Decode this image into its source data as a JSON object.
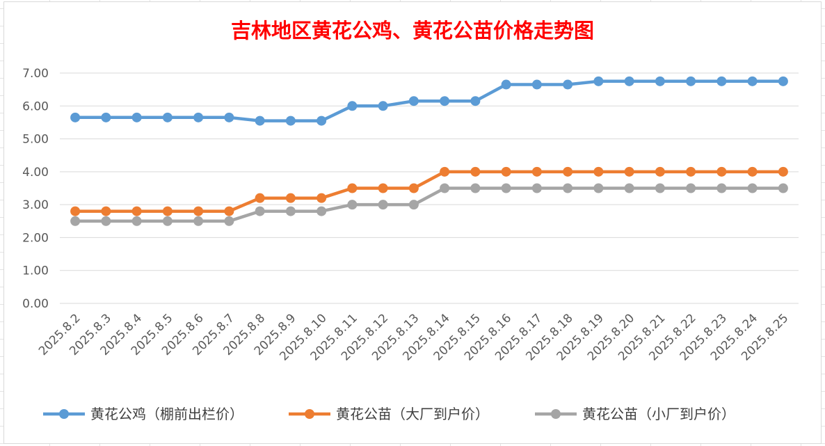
{
  "chart_data": {
    "type": "line",
    "title": "吉林地区黄花公鸡、黄花公苗价格走势图",
    "xlabel": "",
    "ylabel": "",
    "ylim": [
      0,
      7
    ],
    "y_ticks": [
      "0.00",
      "1.00",
      "2.00",
      "3.00",
      "4.00",
      "5.00",
      "6.00",
      "7.00"
    ],
    "grid": "horizontal",
    "legend_position": "bottom",
    "categories": [
      "2025.8.2",
      "2025.8.3",
      "2025.8.4",
      "2025.8.5",
      "2025.8.6",
      "2025.8.7",
      "2025.8.8",
      "2025.8.9",
      "2025.8.10",
      "2025.8.11",
      "2025.8.12",
      "2025.8.13",
      "2025.8.14",
      "2025.8.15",
      "2025.8.16",
      "2025.8.17",
      "2025.8.18",
      "2025.8.19",
      "2025.8.20",
      "2025.8.21",
      "2025.8.22",
      "2025.8.23",
      "2025.8.24",
      "2025.8.25"
    ],
    "series": [
      {
        "name": "黄花公鸡（棚前出栏价）",
        "color": "#5b9bd5",
        "values": [
          5.65,
          5.65,
          5.65,
          5.65,
          5.65,
          5.65,
          5.55,
          5.55,
          5.55,
          6.0,
          6.0,
          6.15,
          6.15,
          6.15,
          6.65,
          6.65,
          6.65,
          6.75,
          6.75,
          6.75,
          6.75,
          6.75,
          6.75,
          6.75
        ]
      },
      {
        "name": "黄花公苗（大厂到户价）",
        "color": "#ed7d31",
        "values": [
          2.8,
          2.8,
          2.8,
          2.8,
          2.8,
          2.8,
          3.2,
          3.2,
          3.2,
          3.5,
          3.5,
          3.5,
          4.0,
          4.0,
          4.0,
          4.0,
          4.0,
          4.0,
          4.0,
          4.0,
          4.0,
          4.0,
          4.0,
          4.0
        ]
      },
      {
        "name": "黄花公苗（小厂到户价）",
        "color": "#a5a5a5",
        "values": [
          2.5,
          2.5,
          2.5,
          2.5,
          2.5,
          2.5,
          2.8,
          2.8,
          2.8,
          3.0,
          3.0,
          3.0,
          3.5,
          3.5,
          3.5,
          3.5,
          3.5,
          3.5,
          3.5,
          3.5,
          3.5,
          3.5,
          3.5,
          3.5
        ]
      }
    ]
  }
}
